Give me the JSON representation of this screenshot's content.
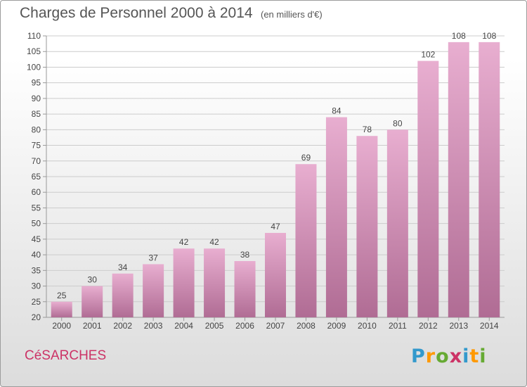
{
  "title": "Charges de Personnel 2000 à 2014",
  "subtitle": "(en milliers d'€)",
  "town": "CéSARCHES",
  "logo": {
    "text": "Proxiti",
    "letters": [
      {
        "char": "P",
        "color": "#3399cc"
      },
      {
        "char": "r",
        "color": "#ff9900"
      },
      {
        "char": "o",
        "color": "#66aa33"
      },
      {
        "char": "x",
        "color": "#cc3366"
      },
      {
        "char": "i",
        "color": "#3399cc"
      },
      {
        "char": "t",
        "color": "#ff9900"
      },
      {
        "char": "i",
        "color": "#66aa33"
      }
    ]
  },
  "colors": {
    "bar_light": "#e8aed0",
    "bar_dark": "#b06c94",
    "grid": "#cccccc",
    "text": "#444444",
    "title": "#555555",
    "town": "#cc3366"
  },
  "chart_data": {
    "type": "bar",
    "title": "Charges de Personnel 2000 à 2014",
    "subtitle": "(en milliers d'€)",
    "xlabel": "",
    "ylabel": "",
    "categories": [
      "2000",
      "2001",
      "2002",
      "2003",
      "2004",
      "2005",
      "2006",
      "2007",
      "2008",
      "2009",
      "2010",
      "2011",
      "2012",
      "2013",
      "2014"
    ],
    "values": [
      25,
      30,
      34,
      37,
      42,
      42,
      38,
      47,
      69,
      84,
      78,
      80,
      102,
      108,
      108
    ],
    "value_labels": [
      "25",
      "30",
      "34",
      "37",
      "42",
      "42",
      "38",
      "47",
      "69",
      "84",
      "78",
      "80",
      "102",
      "108",
      "108"
    ],
    "ylim": [
      20,
      110
    ],
    "yticks": [
      20,
      25,
      30,
      35,
      40,
      45,
      50,
      55,
      60,
      65,
      70,
      75,
      80,
      85,
      90,
      95,
      100,
      105,
      110
    ],
    "grid": true,
    "legend": "none"
  }
}
